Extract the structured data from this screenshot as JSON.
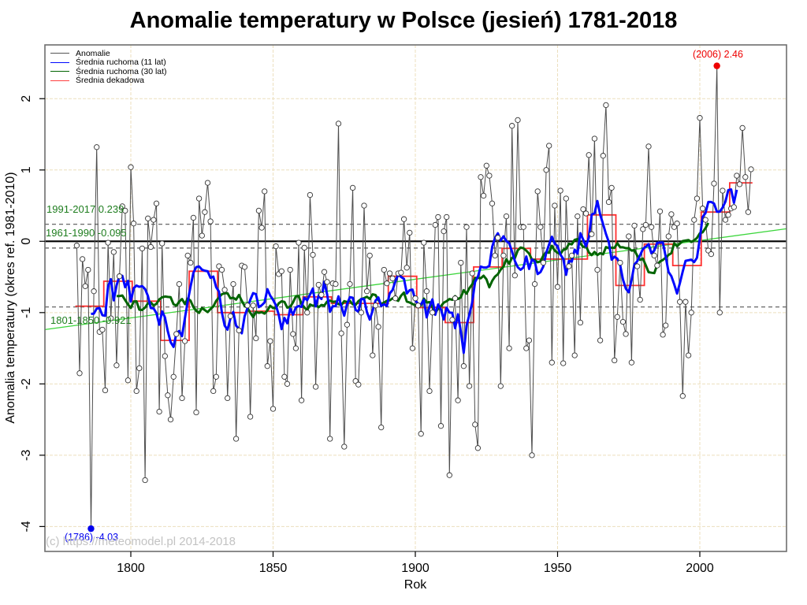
{
  "title": "Anomalie temperatury w Polsce (jesień) 1781-2018",
  "watermark": "(c) https://meteomodel.pl 2014-2018",
  "legend": {
    "items": [
      {
        "label": "Anomalie",
        "color": "#555555"
      },
      {
        "label": "Średnia ruchoma (11 lat)",
        "color": "#0008ff"
      },
      {
        "label": "Średnia ruchoma (30 lat)",
        "color": "#006400"
      },
      {
        "label": "Średnia dekadowa",
        "color": "#ff4040"
      }
    ]
  },
  "chart_data": {
    "type": "line",
    "title": "Anomalie temperatury w Polsce (jesień) 1781-2018",
    "xlabel": "Rok",
    "ylabel": "Anomalia temperatury (okres ref. 1981-2010)",
    "x_start": 1781,
    "x_end": 2018,
    "xlim": [
      1770,
      2030
    ],
    "ylim": [
      -4.4,
      2.7
    ],
    "xticks": [
      1800,
      1850,
      1900,
      1950,
      2000
    ],
    "yticks": [
      2,
      1,
      0,
      -1,
      -2,
      -3,
      -4
    ],
    "grid": true,
    "legend_position": "top-left",
    "anomalies": [
      -0.06,
      -1.85,
      -0.25,
      -0.63,
      -0.4,
      -4.03,
      -0.7,
      1.32,
      -1.27,
      -1.24,
      -2.09,
      -0.02,
      -1.08,
      -0.15,
      -1.74,
      -0.49,
      0.49,
      0.43,
      -1.95,
      1.04,
      0.25,
      -2.1,
      -1.78,
      -0.1,
      -3.35,
      0.32,
      -0.08,
      0.3,
      0.53,
      -2.39,
      -0.03,
      -1.61,
      -2.16,
      -2.5,
      -1.9,
      -1.3,
      -0.6,
      -2.2,
      -1.4,
      -0.2,
      -0.3,
      0.33,
      -2.4,
      0.6,
      0.08,
      0.41,
      0.82,
      0.28,
      -2.1,
      -1.9,
      -0.35,
      -0.4,
      -0.68,
      -2.2,
      -1.05,
      -0.6,
      -2.77,
      -1.25,
      -0.34,
      -0.36,
      -0.9,
      -2.46,
      -0.9,
      -1.36,
      0.43,
      0.19,
      0.7,
      -1.75,
      -1.4,
      -2.35,
      -0.07,
      -0.46,
      -0.42,
      -1.9,
      -2.0,
      -0.4,
      -1.3,
      -1.5,
      -0.02,
      -2.23,
      -0.09,
      -1.0,
      0.65,
      -0.19,
      -2.04,
      -0.61,
      -0.75,
      -0.43,
      -0.57,
      -2.77,
      -0.59,
      -0.6,
      1.65,
      -1.29,
      -2.88,
      -1.17,
      -0.6,
      0.75,
      -1.96,
      -2.01,
      -1.0,
      0.5,
      -0.7,
      -0.2,
      -1.6,
      -0.9,
      -1.2,
      -2.61,
      -0.4,
      -0.59,
      -0.45,
      -0.52,
      -0.8,
      -0.45,
      -0.44,
      0.31,
      -0.37,
      0.12,
      -1.5,
      -0.8,
      -0.9,
      -2.7,
      -0.02,
      -0.7,
      -2.1,
      -1.0,
      0.23,
      0.34,
      -2.59,
      0.14,
      0.34,
      -3.28,
      -1.1,
      -0.8,
      -2.23,
      -0.3,
      -1.75,
      0.2,
      -2.03,
      -0.45,
      -2.57,
      -2.9,
      0.9,
      0.64,
      1.06,
      0.92,
      0.53,
      -0.2,
      0.05,
      -2.03,
      -0.2,
      0.35,
      -1.5,
      1.62,
      -0.48,
      1.7,
      0.2,
      0.2,
      -1.5,
      -1.39,
      -3.0,
      -0.6,
      0.7,
      0.2,
      -0.3,
      1.0,
      1.34,
      -1.7,
      0.5,
      -0.64,
      0.71,
      -1.71,
      0.6,
      -0.35,
      -0.2,
      -1.6,
      0.35,
      -1.14,
      0.45,
      0.39,
      1.21,
      0.1,
      1.44,
      -0.4,
      -1.39,
      1.2,
      1.91,
      0.55,
      0.75,
      -1.67,
      -1.06,
      -0.3,
      -1.13,
      -1.3,
      0.07,
      -1.7,
      0.22,
      -0.35,
      -0.82,
      0.17,
      0.23,
      1.33,
      0.2,
      -0.2,
      -0.34,
      0.42,
      -1.31,
      -1.18,
      0.07,
      0.38,
      0.2,
      0.25,
      -0.85,
      -2.17,
      -0.85,
      -1.6,
      -1.0,
      0.3,
      0.6,
      1.73,
      0.46,
      0.3,
      -0.13,
      -0.18,
      0.81,
      2.46,
      -1.0,
      0.71,
      0.3,
      0.37,
      0.46,
      0.48,
      0.92,
      0.8,
      1.59,
      0.9,
      0.41,
      1.01
    ],
    "moving_average_windows": [
      11,
      30
    ],
    "decadal_means": {
      "periods": [
        "1781-1790",
        "1791-1800",
        "1801-1810",
        "1811-1820",
        "1821-1830",
        "1831-1840",
        "1841-1850",
        "1851-1860",
        "1861-1870",
        "1871-1880",
        "1881-1890",
        "1891-1900",
        "1901-1910",
        "1911-1920",
        "1921-1930",
        "1931-1940",
        "1941-1950",
        "1951-1960",
        "1961-1970",
        "1971-1980",
        "1981-1990",
        "1991-2000",
        "2001-2010",
        "2011-2018"
      ],
      "values": [
        -0.91,
        -0.56,
        -0.84,
        -1.39,
        -0.42,
        -1.0,
        -0.98,
        -1.03,
        -0.78,
        -0.87,
        -0.87,
        -0.49,
        -0.93,
        -1.14,
        -0.36,
        -0.1,
        -0.25,
        -0.25,
        0.37,
        -0.62,
        -0.04,
        -0.34,
        0.41,
        0.82
      ]
    },
    "references": [
      {
        "label": "1991-2017 0.239",
        "value": 0.239,
        "color": "#1e7d1e"
      },
      {
        "label": "1961-1990 -0.095",
        "value": -0.095,
        "color": "#1e7d1e"
      },
      {
        "label": "1801-1850 -0.921",
        "value": -0.921,
        "color": "#1e7d1e"
      }
    ],
    "extremes": {
      "max": {
        "year": 2006,
        "value": 2.46,
        "label": "(2006) 2.46",
        "color": "#ee0000"
      },
      "min": {
        "year": 1786,
        "value": -4.03,
        "label": "(1786) -4.03",
        "color": "#0000ee"
      }
    },
    "trend": {
      "type": "linear-regression",
      "color": "#3cd63c"
    },
    "colors": {
      "anomaly_line": "#4d4d4d",
      "marker_stroke": "#333333",
      "ma11": "#0008ff",
      "ma30": "#006400",
      "decadal": "#ff3030",
      "zero_line": "#000000",
      "reference_dash": "#555555",
      "grid": "#ecdfbe",
      "border": "#6e6e6e"
    }
  }
}
